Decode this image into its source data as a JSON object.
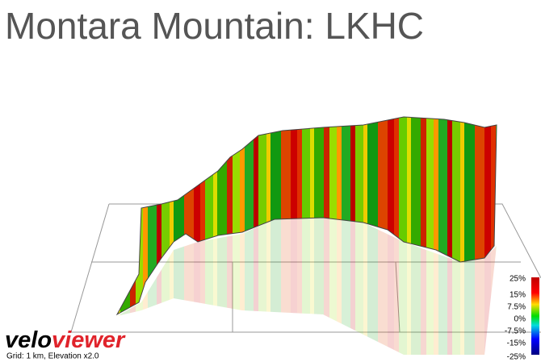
{
  "title": "Montara Mountain: LKHC",
  "logo": {
    "part1": "velo",
    "part2": "viewer"
  },
  "caption": "Grid: 1 km, Elevation x2.0",
  "legend": {
    "ticks": [
      "25%",
      "15%",
      "7.5%",
      "0%",
      "-7.5%",
      "-15%",
      "-25%"
    ]
  }
}
